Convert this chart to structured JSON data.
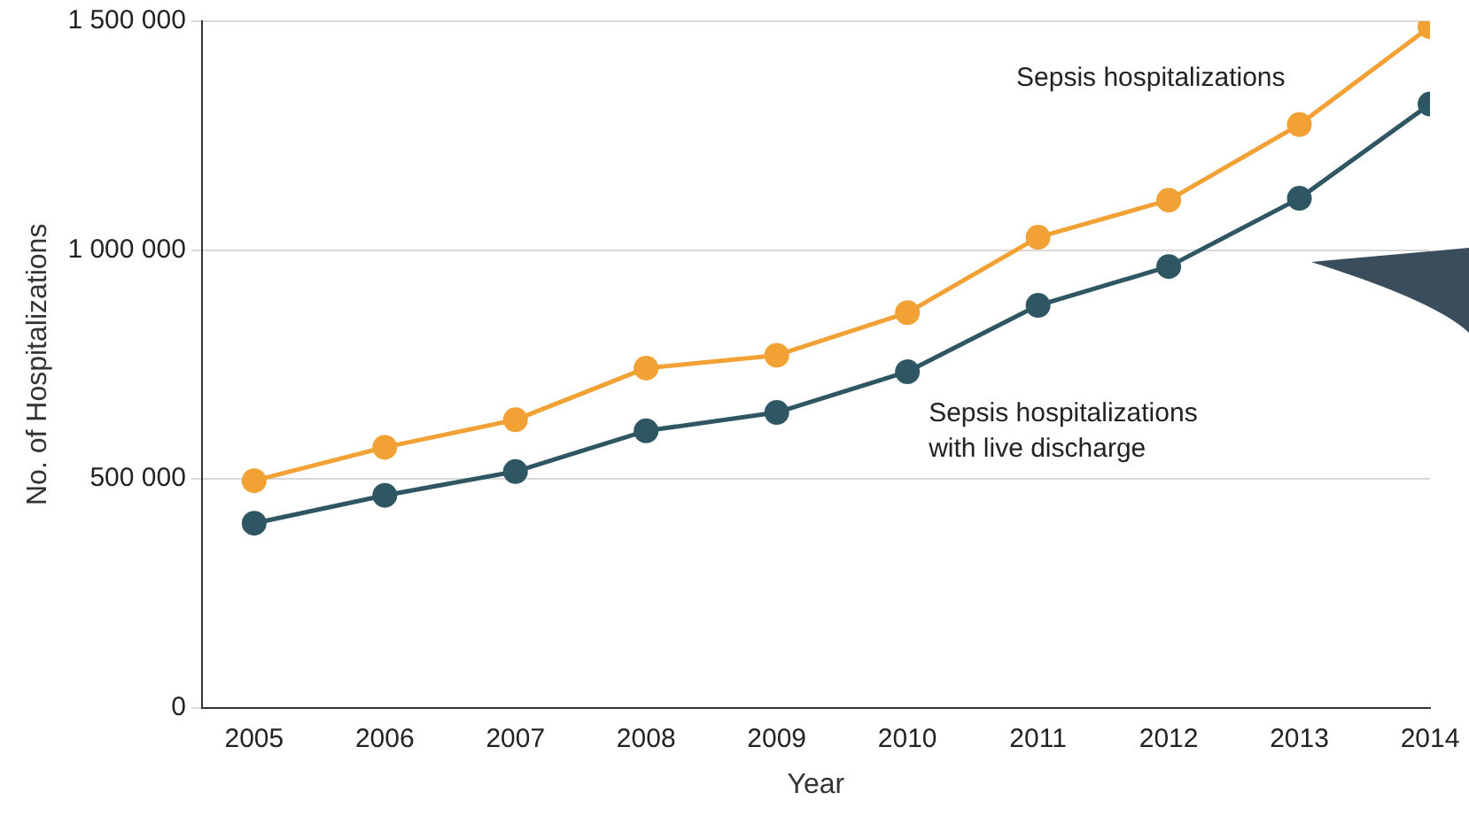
{
  "chart_data": {
    "type": "line",
    "xlabel": "Year",
    "ylabel": "No. of Hospitalizations",
    "x": [
      2005,
      2006,
      2007,
      2008,
      2009,
      2010,
      2011,
      2012,
      2013,
      2014
    ],
    "series": [
      {
        "name": "Sepsis hospitalizations",
        "color": "#f2a134",
        "values": [
          496000,
          569000,
          629000,
          742000,
          770000,
          863000,
          1028000,
          1109000,
          1274000,
          1488000
        ]
      },
      {
        "name": "Sepsis hospitalizations with live discharge",
        "color": "#2f5663",
        "values": [
          403000,
          464000,
          516000,
          605000,
          645000,
          734000,
          879000,
          964000,
          1113000,
          1319000
        ]
      }
    ],
    "xlim": [
      2004.6,
      2014
    ],
    "xticks": [
      2005,
      2006,
      2007,
      2008,
      2009,
      2010,
      2011,
      2012,
      2013,
      2014
    ],
    "ylim": [
      0,
      1500000
    ],
    "yticks": [
      0,
      {
        "value": 500000,
        "label": "500 000"
      },
      {
        "value": 1000000,
        "label": "1 000 000"
      },
      {
        "value": 1500000,
        "label": "1 500 000"
      }
    ],
    "grid": "y",
    "legend": false,
    "marker": "circle",
    "line_style": "solid"
  }
}
